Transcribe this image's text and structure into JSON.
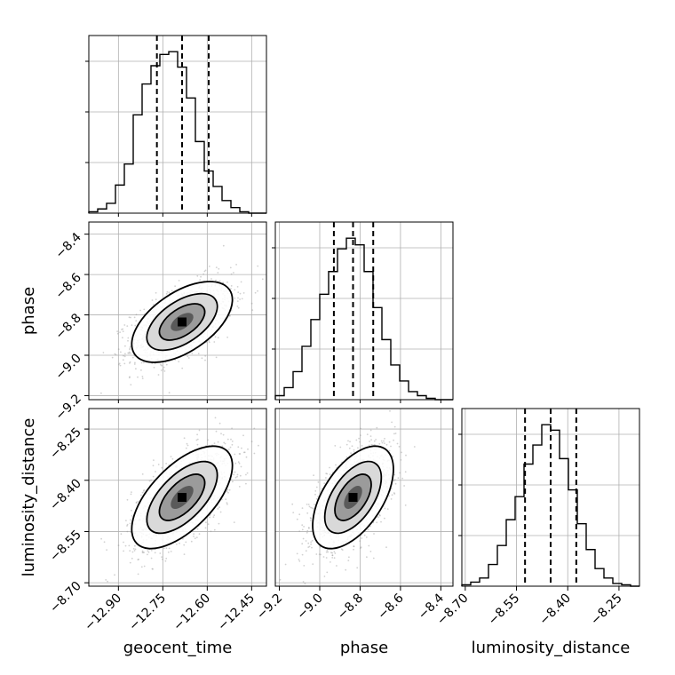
{
  "chart_data": {
    "type": "corner",
    "parameters": [
      "geocent_time",
      "phase",
      "luminosity_distance"
    ],
    "ranges": {
      "geocent_time": [
        -13.0,
        -12.4
      ],
      "phase": [
        -9.22,
        -8.34
      ],
      "luminosity_distance": [
        -8.71,
        -8.19
      ]
    },
    "ticks": {
      "geocent_time": [
        -12.9,
        -12.75,
        -12.6,
        -12.45
      ],
      "phase": [
        -9.2,
        -9.0,
        -8.8,
        -8.6,
        -8.4
      ],
      "luminosity_distance": [
        -8.7,
        -8.55,
        -8.4,
        -8.25
      ]
    },
    "tick_labels": {
      "geocent_time": [
        "−12.90",
        "−12.75",
        "−12.60",
        "−12.45"
      ],
      "phase": [
        "−9.2",
        "−9.0",
        "−8.8",
        "−8.6",
        "−8.4"
      ],
      "luminosity_distance": [
        "−8.70",
        "−8.55",
        "−8.40",
        "−8.25"
      ]
    },
    "quantiles": {
      "geocent_time": [
        -12.77,
        -12.685,
        -12.595
      ],
      "phase": [
        -8.93,
        -8.835,
        -8.735
      ],
      "luminosity_distance": [
        -8.525,
        -8.45,
        -8.375
      ]
    },
    "histograms": {
      "geocent_time": {
        "range": [
          -13.0,
          -12.4
        ],
        "counts": [
          1,
          3,
          7,
          20,
          35,
          70,
          92,
          105,
          113,
          115,
          104,
          82,
          51,
          30,
          19,
          9,
          4,
          1,
          0,
          0
        ]
      },
      "phase": {
        "range": [
          -9.22,
          -8.34
        ],
        "counts": [
          3,
          9,
          21,
          40,
          60,
          79,
          96,
          113,
          121,
          116,
          96,
          69,
          45,
          26,
          14,
          6,
          3,
          1,
          0,
          0
        ]
      },
      "luminosity_distance": {
        "range": [
          -8.71,
          -8.19
        ],
        "counts": [
          1,
          3,
          6,
          16,
          30,
          49,
          66,
          90,
          104,
          119,
          115,
          94,
          71,
          46,
          27,
          13,
          6,
          2,
          1,
          0
        ]
      }
    },
    "correlations": {
      "phase|geocent_time": 0.55,
      "luminosity_distance|geocent_time": 0.62,
      "luminosity_distance|phase": 0.55
    },
    "means": {
      "geocent_time": -12.685,
      "phase": -8.835,
      "luminosity_distance": -8.45
    },
    "stds": {
      "geocent_time": 0.085,
      "phase": 0.1,
      "luminosity_distance": 0.075
    },
    "grid": true,
    "colors": {
      "line": "#000000",
      "scatter": "#9a9a9a",
      "grid": "#b0b0b0"
    }
  }
}
